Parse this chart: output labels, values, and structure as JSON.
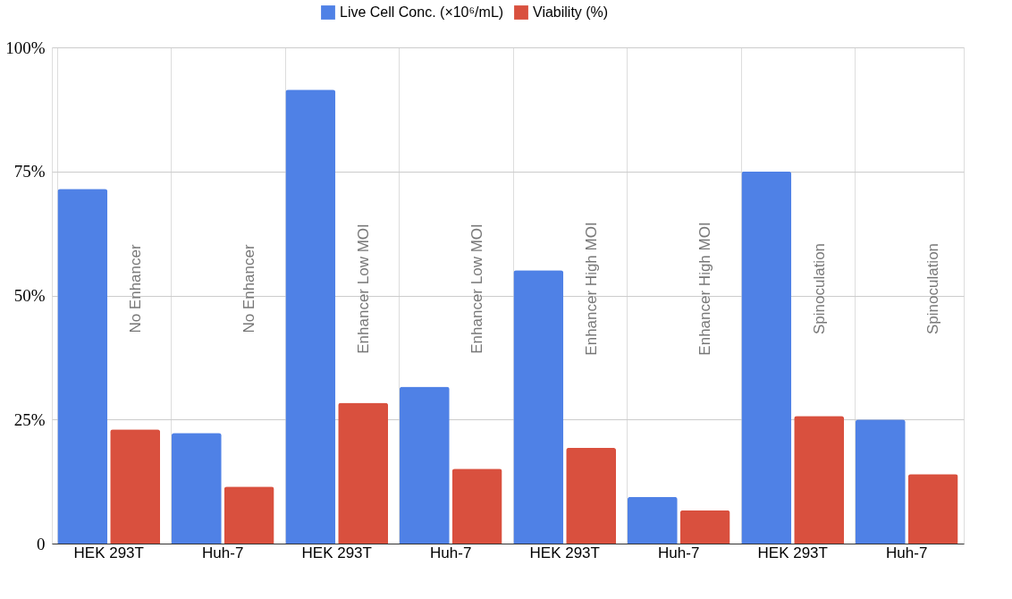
{
  "chart_data": {
    "type": "bar",
    "categories": [
      "HEK 293T",
      "Huh-7",
      "HEK 293T",
      "Huh-7",
      "HEK 293T",
      "Huh-7",
      "HEK 293T",
      "Huh-7"
    ],
    "series": [
      {
        "name": "Live Cell Conc. (×10⁶/mL)",
        "color": "#4f81e6",
        "values": [
          71.5,
          22.3,
          91.5,
          31.6,
          55.1,
          9.4,
          75.0,
          25.0
        ]
      },
      {
        "name": "Viability (%)",
        "color": "#d9503e",
        "values": [
          23.0,
          11.5,
          28.4,
          15.1,
          19.3,
          6.7,
          25.7,
          14.0
        ]
      }
    ],
    "annotations": [
      "No Enhancer",
      "No Enhancer",
      "Enhancer Low MOI",
      "Enhancer Low MOI",
      "Enhancer High MOI",
      "Enhancer High MOI",
      "Spinoculation",
      "Spinoculation"
    ],
    "ylim": [
      0,
      100
    ],
    "yticks": [
      {
        "value": 0,
        "label": "0"
      },
      {
        "value": 25,
        "label": "25%"
      },
      {
        "value": 50,
        "label": "50%"
      },
      {
        "value": 75,
        "label": "75%"
      },
      {
        "value": 100,
        "label": "100%"
      }
    ],
    "grid": true,
    "legend": "top"
  }
}
